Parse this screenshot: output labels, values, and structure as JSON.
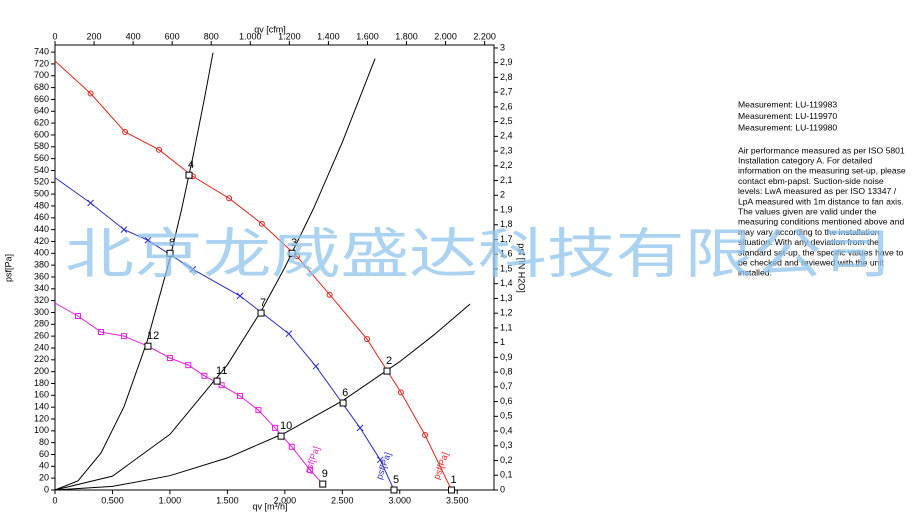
{
  "chart_data": {
    "type": "line",
    "x_label": "qv [m³/h]",
    "x2_label": "qv [cfm]",
    "y_label": "psf[Pa]",
    "y2_label": "psf [IN H2O]",
    "xlim": [
      0,
      3820
    ],
    "xticks": [
      0,
      {
        "value": 500,
        "label": "0.500"
      },
      {
        "value": 1000,
        "label": "1.000"
      },
      {
        "value": 1500,
        "label": "1.500"
      },
      {
        "value": 2000,
        "label": "2.000"
      },
      {
        "value": 2500,
        "label": "2.500"
      },
      {
        "value": 3000,
        "label": "3.000"
      },
      {
        "value": 3500,
        "label": "3.500"
      }
    ],
    "x2lim": [
      0,
      2248
    ],
    "x2ticks": [
      0,
      200,
      400,
      600,
      800,
      {
        "value": 1000,
        "label": "1.000"
      },
      {
        "value": 1200,
        "label": "1.200"
      },
      {
        "value": 1400,
        "label": "1.400"
      },
      {
        "value": 1600,
        "label": "1.600"
      },
      {
        "value": 1800,
        "label": "1.800"
      },
      {
        "value": 2000,
        "label": "2.000"
      },
      {
        "value": 2200,
        "label": "2.200"
      }
    ],
    "ylim": [
      0,
      752
    ],
    "yticks": [
      0,
      20,
      40,
      60,
      80,
      100,
      120,
      140,
      160,
      180,
      200,
      220,
      240,
      260,
      280,
      300,
      320,
      340,
      360,
      380,
      400,
      420,
      440,
      460,
      480,
      500,
      520,
      540,
      560,
      580,
      600,
      620,
      640,
      660,
      680,
      700,
      720,
      740
    ],
    "y2lim": [
      0,
      3.02
    ],
    "y2ticks": [
      0,
      {
        "value": 0.1,
        "label": "0,1"
      },
      {
        "value": 0.2,
        "label": "0,2"
      },
      {
        "value": 0.3,
        "label": "0,3"
      },
      {
        "value": 0.4,
        "label": "0,4"
      },
      {
        "value": 0.5,
        "label": "0,5"
      },
      {
        "value": 0.6,
        "label": "0,6"
      },
      {
        "value": 0.7,
        "label": "0,7"
      },
      {
        "value": 0.8,
        "label": "0,8"
      },
      {
        "value": 0.9,
        "label": "0,9"
      },
      1,
      {
        "value": 1.1,
        "label": "1,1"
      },
      {
        "value": 1.2,
        "label": "1,2"
      },
      {
        "value": 1.3,
        "label": "1,3"
      },
      {
        "value": 1.4,
        "label": "1,4"
      },
      {
        "value": 1.5,
        "label": "1,5"
      },
      {
        "value": 1.6,
        "label": "1,6"
      },
      {
        "value": 1.7,
        "label": "1,7"
      },
      {
        "value": 1.8,
        "label": "1,8"
      },
      {
        "value": 1.9,
        "label": "1,9"
      },
      2,
      {
        "value": 2.1,
        "label": "2,1"
      },
      {
        "value": 2.2,
        "label": "2,2"
      },
      {
        "value": 2.3,
        "label": "2,3"
      },
      {
        "value": 2.4,
        "label": "2,4"
      },
      {
        "value": 2.5,
        "label": "2,5"
      },
      {
        "value": 2.6,
        "label": "2,6"
      },
      {
        "value": 2.7,
        "label": "2,7"
      },
      {
        "value": 2.8,
        "label": "2,8"
      },
      {
        "value": 2.9,
        "label": "2,9"
      },
      3
    ],
    "series": [
      {
        "name": "psf[Pa]",
        "color": "#e8231c",
        "marker": "circle",
        "x": [
          0,
          310,
          610,
          905,
          1200,
          1515,
          1800,
          2105,
          2390,
          2715,
          3010,
          3220,
          3450
        ],
        "values": [
          725,
          670,
          605,
          575,
          530,
          493,
          450,
          395,
          330,
          255,
          165,
          93,
          0
        ]
      },
      {
        "name": "psf[Pa]",
        "color": "#2b2bd0",
        "marker": "cross",
        "x": [
          0,
          310,
          600,
          809,
          1200,
          1610,
          2035,
          2270,
          2655,
          2830,
          2950
        ],
        "values": [
          528,
          485,
          440,
          422,
          373,
          328,
          264,
          209,
          105,
          51,
          0
        ]
      },
      {
        "name": "psf[Pa]",
        "color": "#e81ee0",
        "marker": "square",
        "x": [
          0,
          200,
          400,
          600,
          809,
          1000,
          1160,
          1300,
          1450,
          1610,
          1770,
          1915,
          2060,
          2220,
          2330
        ],
        "values": [
          316,
          294,
          267,
          260,
          243,
          223,
          211,
          193,
          177,
          159,
          135,
          105,
          73,
          34,
          10
        ]
      }
    ],
    "system_curves": [
      {
        "color": "#000000",
        "x": [
          0,
          200,
          400,
          600,
          800,
          1000,
          1100,
          1200,
          1300,
          1375
        ],
        "values": [
          0,
          15.6,
          62.6,
          140.8,
          250,
          391,
          473,
          563,
          661,
          739
        ]
      },
      {
        "color": "#000000",
        "x": [
          0,
          500,
          1000,
          1500,
          1800,
          2000,
          2250,
          2500,
          2785
        ],
        "values": [
          0,
          23.5,
          94,
          211.5,
          304.6,
          376,
          475.9,
          587.5,
          729
        ]
      },
      {
        "color": "#000000",
        "x": [
          0,
          500,
          1000,
          1500,
          2000,
          2500,
          3000,
          3300,
          3612
        ],
        "values": [
          0,
          6,
          24.1,
          54.2,
          96.4,
          150.6,
          216.9,
          262.4,
          314.4
        ]
      }
    ],
    "operating_points": [
      {
        "label": "1",
        "x": 3450,
        "y": 0
      },
      {
        "label": "2",
        "x": 2889,
        "y": 201
      },
      {
        "label": "3",
        "x": 2063,
        "y": 400
      },
      {
        "label": "4",
        "x": 1166,
        "y": 532
      },
      {
        "label": "5",
        "x": 2950,
        "y": 0
      },
      {
        "label": "6",
        "x": 2507,
        "y": 147
      },
      {
        "label": "7",
        "x": 1793,
        "y": 299
      },
      {
        "label": "8",
        "x": 1001,
        "y": 400
      },
      {
        "label": "9",
        "x": 2330,
        "y": 10
      },
      {
        "label": "10",
        "x": 1967,
        "y": 91
      },
      {
        "label": "11",
        "x": 1410,
        "y": 184
      },
      {
        "label": "12",
        "x": 809,
        "y": 243
      }
    ]
  },
  "notes": {
    "measurements": [
      "Measurement: LU-119983",
      "Measurement: LU-119970",
      "Measurement: LU-119980"
    ],
    "description": [
      "Air performance measured as per ISO 5801",
      "Installation category A. For detailed",
      "information on the measuring set-up, please",
      "contact ebm-papst. Suction-side noise",
      "levels: LwA measured as per ISO 13347 /",
      "LpA measured with 1m distance to fan axis.",
      "The values given are valid under the",
      "measuring conditions mentioned above and",
      "may vary according to the installation",
      "situation. With any deviation from the",
      "standard set-up, the specific values have to",
      "be checked and reviewed with the unit",
      "installed."
    ]
  },
  "watermark": "北京龙威盛达科技有限公司"
}
